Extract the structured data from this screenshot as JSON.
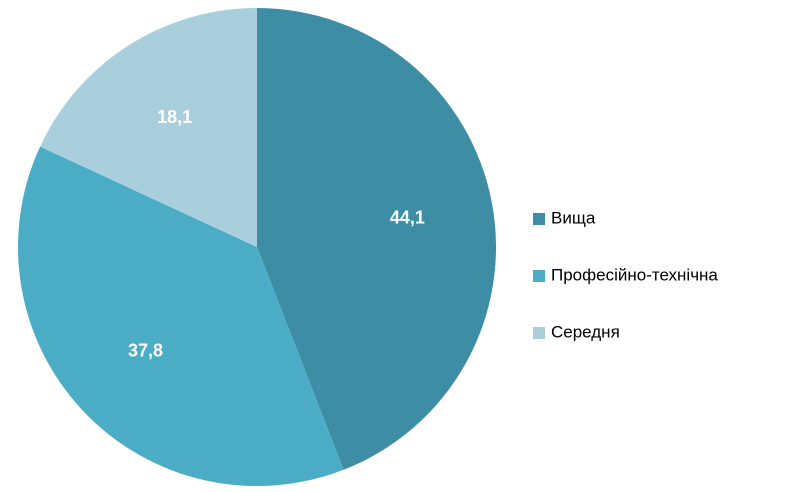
{
  "chart_data": {
    "type": "pie",
    "categories": [
      "Вища",
      "Професійно-технічна",
      "Середня"
    ],
    "values": [
      44.1,
      37.8,
      18.1
    ],
    "value_labels": [
      "44,1",
      "37,8",
      "18,1"
    ],
    "colors": [
      "#3d8ea5",
      "#4bacc6",
      "#a9cfdd"
    ],
    "legend": "right"
  }
}
